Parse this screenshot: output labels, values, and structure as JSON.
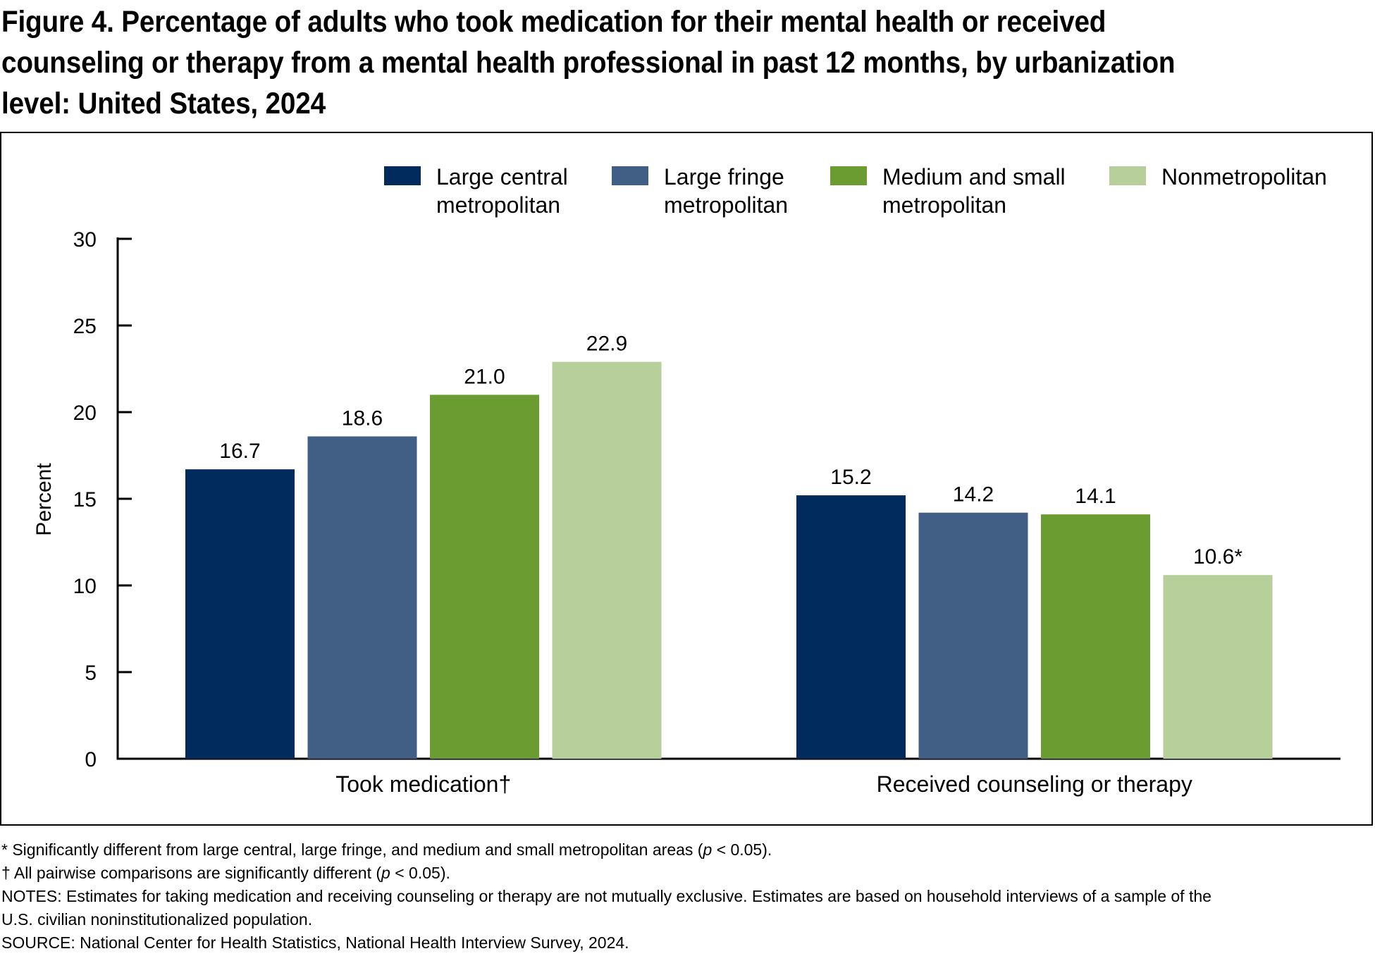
{
  "title": "Figure 4. Percentage of adults who took medication for their mental health or received counseling or therapy from a mental health professional in past 12 months, by urbanization level: United States, 2024",
  "chart_data": {
    "type": "bar",
    "title": "",
    "ylabel": "Percent",
    "xlabel": "",
    "ylim": [
      0,
      30
    ],
    "yticks": [
      0,
      5,
      10,
      15,
      20,
      25,
      30
    ],
    "categories": [
      "Took medication†",
      "Received counseling or therapy"
    ],
    "legend_position": "top",
    "grid": false,
    "series": [
      {
        "name": "Large central metropolitan",
        "legend_lines": [
          "Large central",
          "metropolitan"
        ],
        "color": "#002b5c",
        "values": [
          16.7,
          15.2
        ],
        "labels": [
          "16.7",
          "15.2"
        ]
      },
      {
        "name": "Large fringe metropolitan",
        "legend_lines": [
          "Large fringe",
          "metropolitan"
        ],
        "color": "#415f85",
        "values": [
          18.6,
          14.2
        ],
        "labels": [
          "18.6",
          "14.2"
        ]
      },
      {
        "name": "Medium and small metropolitan",
        "legend_lines": [
          "Medium and small",
          "metropolitan"
        ],
        "color": "#6b9c31",
        "values": [
          21.0,
          14.1
        ],
        "labels": [
          "21.0",
          "14.1"
        ]
      },
      {
        "name": "Nonmetropolitan",
        "legend_lines": [
          "Nonmetropolitan"
        ],
        "color": "#b6cf9b",
        "values": [
          22.9,
          10.6
        ],
        "labels": [
          "22.9",
          "10.6*"
        ]
      }
    ]
  },
  "notes": {
    "footnote_star": "* Significantly different from large central, large fringe, and medium and small metropolitan areas (",
    "footnote_star_p": "p",
    "footnote_star_end": " < 0.05).",
    "footnote_dagger": "† All pairwise comparisons are significantly different (",
    "footnote_dagger_p": "p",
    "footnote_dagger_end": " < 0.05).",
    "notes_line1": "NOTES: Estimates for taking medication and receiving counseling or therapy are not mutually exclusive. Estimates are based on household interviews of a sample of the",
    "notes_line2": "U.S. civilian noninstitutionalized population.",
    "source": "SOURCE: National Center for Health Statistics, National Health Interview Survey, 2024."
  }
}
